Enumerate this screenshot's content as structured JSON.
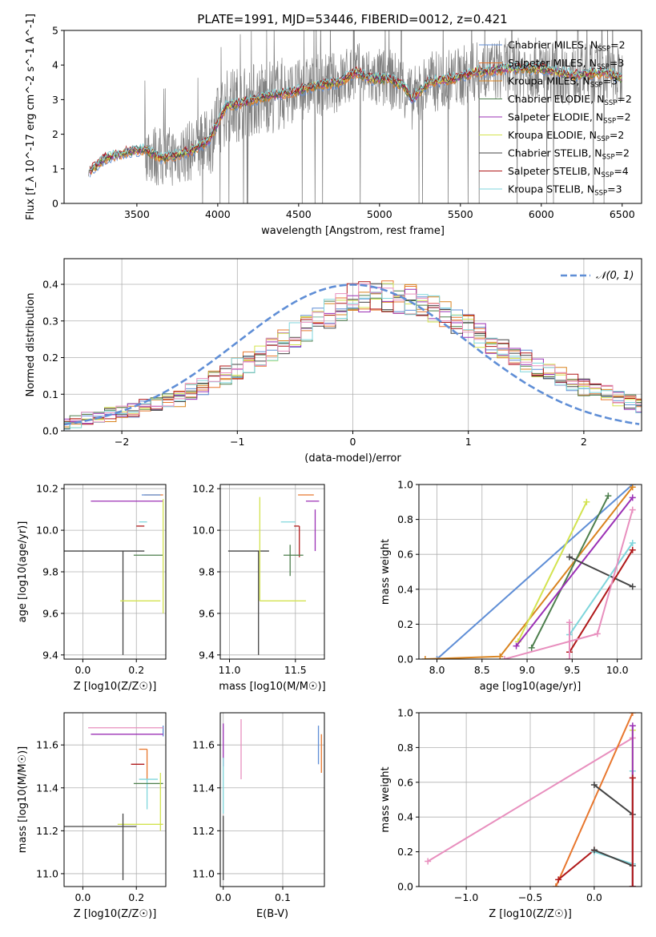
{
  "figure": {
    "title": "PLATE=1991, MJD=53446, FIBERID=0012, z=0.421"
  },
  "chart_data": [
    {
      "id": "spectrum",
      "type": "line",
      "title": "PLATE=1991, MJD=53446, FIBERID=0012, z=0.421",
      "xlabel": "wavelength [Angstrom, rest frame]",
      "ylabel": "Flux [f_λ 10^-17 erg cm^-2 s^-1 A^-1]",
      "xlim": [
        3050,
        6620
      ],
      "ylim": [
        0,
        5
      ],
      "xticks": [
        3500,
        4000,
        4500,
        5000,
        5500,
        6000,
        6500
      ],
      "yticks": [
        0,
        1,
        2,
        3,
        4,
        5
      ],
      "grid": false,
      "legend_position": "upper-right",
      "data_color": "#808080",
      "data_envelope": {
        "x_start": 3200,
        "x_end": 6500,
        "anchor_x": [
          3200,
          3300,
          3450,
          3550,
          3650,
          3750,
          3850,
          3950,
          4050,
          4150,
          4300,
          4450,
          4600,
          4750,
          4850,
          4950,
          5050,
          5150,
          5200,
          5300,
          5450,
          5600,
          5800,
          6000,
          6200,
          6400,
          6500
        ],
        "anchor_y": [
          0.9,
          1.3,
          1.5,
          1.55,
          1.3,
          1.4,
          1.55,
          1.85,
          2.8,
          2.9,
          3.1,
          3.2,
          3.4,
          3.5,
          3.8,
          3.6,
          3.6,
          3.4,
          3.0,
          3.5,
          3.6,
          3.8,
          3.9,
          3.9,
          3.7,
          3.8,
          3.6
        ]
      },
      "series": [
        {
          "name": "Chabrier MILES, N_SSP=2",
          "color": "#5f8ed6"
        },
        {
          "name": "Salpeter MILES, N_SSP=3",
          "color": "#e8772e"
        },
        {
          "name": "Kroupa MILES, N_SSP=3",
          "color": "#d9831f"
        },
        {
          "name": "Chabrier ELODIE, N_SSP=2",
          "color": "#4d7f4d"
        },
        {
          "name": "Salpeter ELODIE, N_SSP=2",
          "color": "#9b30b5"
        },
        {
          "name": "Kroupa ELODIE, N_SSP=2",
          "color": "#d3e34f"
        },
        {
          "name": "Chabrier STELIB, N_SSP=2",
          "color": "#444444"
        },
        {
          "name": "Salpeter STELIB, N_SSP=4",
          "color": "#b0191a"
        },
        {
          "name": "Kroupa STELIB, N_SSP=3",
          "color": "#7fd6dc"
        }
      ]
    },
    {
      "id": "residuals",
      "type": "area",
      "xlabel": "(data-model)/error",
      "ylabel": "Normed distribution",
      "xlim": [
        -2.5,
        2.5
      ],
      "ylim": [
        0,
        0.47
      ],
      "xticks": [
        -2,
        -1,
        0,
        1,
        2
      ],
      "yticks": [
        0.0,
        0.1,
        0.2,
        0.3,
        0.4
      ],
      "grid": true,
      "legend": [
        {
          "name": "𝒩(0, 1)",
          "color": "#5f8ed6",
          "style": "dashed"
        }
      ],
      "legend_position": "upper-right",
      "bin_width": 0.1,
      "series_colors": [
        "#5f8ed6",
        "#e8772e",
        "#d9831f",
        "#4d7f4d",
        "#9b30b5",
        "#d3e34f",
        "#444444",
        "#b0191a",
        "#7fd6dc",
        "#e88fbe"
      ],
      "histogram_envelope": {
        "x": [
          -2.5,
          -2.0,
          -1.5,
          -1.0,
          -0.5,
          -0.2,
          0.0,
          0.2,
          0.5,
          0.8,
          1.0,
          1.5,
          2.0,
          2.5
        ],
        "y": [
          0.02,
          0.05,
          0.09,
          0.17,
          0.26,
          0.32,
          0.36,
          0.37,
          0.36,
          0.32,
          0.28,
          0.19,
          0.12,
          0.07
        ]
      }
    },
    {
      "id": "age-vs-Z",
      "type": "scatter",
      "xlabel": "Z [log10(Z/Z☉)]",
      "ylabel": "age  [log10(age/yr)]",
      "xlim": [
        -0.07,
        0.31
      ],
      "ylim": [
        9.38,
        10.22
      ],
      "xticks": [
        0.0,
        0.2
      ],
      "yticks": [
        9.4,
        9.6,
        9.8,
        10.0,
        10.2
      ],
      "grid": true,
      "points": [
        {
          "x": 0.3,
          "y": 10.17,
          "xerr": [
            0.07,
            0.0
          ],
          "yerr": [
            0.0,
            0.0
          ],
          "color": "#e8772e"
        },
        {
          "x": 0.27,
          "y": 10.17,
          "xerr": [
            0.05,
            0.02
          ],
          "yerr": [
            0.0,
            0.0
          ],
          "color": "#5f8ed6"
        },
        {
          "x": 0.27,
          "y": 10.14,
          "xerr": [
            0.24,
            0.03
          ],
          "yerr": [
            0.0,
            0.0
          ],
          "color": "#9b30b5"
        },
        {
          "x": 0.24,
          "y": 10.04,
          "xerr": [
            0.03,
            0.0
          ],
          "yerr": [
            0.0,
            0.0
          ],
          "color": "#7fd6dc"
        },
        {
          "x": 0.23,
          "y": 10.02,
          "xerr": [
            0.03,
            0.0
          ],
          "yerr": [
            0.0,
            0.0
          ],
          "color": "#b0191a"
        },
        {
          "x": 0.24,
          "y": 9.88,
          "xerr": [
            0.05,
            0.06
          ],
          "yerr": [
            0.0,
            0.0
          ],
          "color": "#4d7f4d"
        },
        {
          "x": 0.15,
          "y": 9.9,
          "xerr": [
            0.22,
            0.08
          ],
          "yerr": [
            0.5,
            0.0
          ],
          "color": "#444444"
        },
        {
          "x": 0.26,
          "y": 9.66,
          "xerr": [
            0.12,
            0.03
          ],
          "yerr": [
            0.0,
            0.0
          ],
          "color": "#d3e34f"
        },
        {
          "x": 0.3,
          "y": 9.95,
          "xerr": [
            0.0,
            0.0
          ],
          "yerr": [
            0.35,
            0.2
          ],
          "color": "#d3e34f"
        }
      ]
    },
    {
      "id": "age-vs-mass",
      "type": "scatter",
      "xlabel": "mass [log10(M/M☉)]",
      "ylabel": "",
      "xlim": [
        10.93,
        11.72
      ],
      "ylim": [
        9.38,
        10.22
      ],
      "xticks": [
        11.0,
        11.5
      ],
      "yticks": [
        9.4,
        9.6,
        9.8,
        10.0,
        10.2
      ],
      "grid": true,
      "points": [
        {
          "x": 11.59,
          "y": 10.17,
          "xerr": [
            0.07,
            0.05
          ],
          "yerr": [
            0.0,
            0.0
          ],
          "color": "#e8772e"
        },
        {
          "x": 11.65,
          "y": 10.14,
          "xerr": [
            0.07,
            0.03
          ],
          "yerr": [
            0.0,
            0.0
          ],
          "color": "#9b30b5"
        },
        {
          "x": 11.65,
          "y": 10.1,
          "xerr": [
            0.0,
            0.0
          ],
          "yerr": [
            0.2,
            0.0
          ],
          "color": "#9b30b5"
        },
        {
          "x": 11.47,
          "y": 10.04,
          "xerr": [
            0.08,
            0.03
          ],
          "yerr": [
            0.0,
            0.0
          ],
          "color": "#7fd6dc"
        },
        {
          "x": 11.53,
          "y": 10.02,
          "xerr": [
            0.04,
            0.0
          ],
          "yerr": [
            0.15,
            0.0
          ],
          "color": "#b0191a"
        },
        {
          "x": 11.46,
          "y": 9.88,
          "xerr": [
            0.05,
            0.1
          ],
          "yerr": [
            0.1,
            0.05
          ],
          "color": "#4d7f4d"
        },
        {
          "x": 11.22,
          "y": 9.9,
          "xerr": [
            0.23,
            0.08
          ],
          "yerr": [
            0.5,
            0.0
          ],
          "color": "#444444"
        },
        {
          "x": 11.23,
          "y": 9.66,
          "xerr": [
            0.0,
            0.35
          ],
          "yerr": [
            0.0,
            0.5
          ],
          "color": "#d3e34f"
        }
      ]
    },
    {
      "id": "weight-vs-age",
      "type": "line",
      "xlabel": "age  [log10(age/yr)]",
      "ylabel": "mass weight",
      "xlim": [
        7.8,
        10.27
      ],
      "ylim": [
        0,
        1.0
      ],
      "xticks": [
        8.0,
        8.5,
        9.0,
        9.5,
        10.0
      ],
      "yticks": [
        0.0,
        0.2,
        0.4,
        0.6,
        0.8,
        1.0
      ],
      "grid": true,
      "series": [
        {
          "color": "#5f8ed6",
          "x": [
            8.0,
            10.17
          ],
          "y": [
            0.0,
            1.0
          ]
        },
        {
          "color": "#d9831f",
          "x": [
            7.87,
            8.7,
            10.17
          ],
          "y": [
            0.0,
            0.015,
            0.985
          ]
        },
        {
          "color": "#d3e34f",
          "x": [
            8.9,
            9.66
          ],
          "y": [
            0.1,
            0.9
          ]
        },
        {
          "color": "#4d7f4d",
          "x": [
            9.05,
            9.9
          ],
          "y": [
            0.065,
            0.935
          ]
        },
        {
          "color": "#9b30b5",
          "x": [
            8.88,
            10.17
          ],
          "y": [
            0.075,
            0.925
          ]
        },
        {
          "color": "#444444",
          "x": [
            9.47,
            10.17
          ],
          "y": [
            0.585,
            0.415
          ]
        },
        {
          "color": "#7fd6dc",
          "x": [
            9.47,
            10.17
          ],
          "y": [
            0.14,
            0.665
          ]
        },
        {
          "color": "#b0191a",
          "x": [
            9.47,
            10.17
          ],
          "y": [
            0.04,
            0.625
          ]
        },
        {
          "color": "#e88fbe",
          "x": [
            8.75,
            9.78,
            10.17
          ],
          "y": [
            0.0,
            0.145,
            0.855
          ]
        },
        {
          "color": "#e88fbe",
          "x": [
            9.47,
            9.47
          ],
          "y": [
            0.21,
            0.0
          ]
        }
      ]
    },
    {
      "id": "mass-vs-Z",
      "type": "scatter",
      "xlabel": "Z [log10(Z/Z☉)]",
      "ylabel": "mass [log10(M/M☉)]",
      "xlim": [
        -0.07,
        0.31
      ],
      "ylim": [
        10.94,
        11.75
      ],
      "xticks": [
        0.0,
        0.2
      ],
      "yticks": [
        11.0,
        11.2,
        11.4,
        11.6
      ],
      "grid": true,
      "points": [
        {
          "x": 0.3,
          "y": 11.69,
          "xerr": [
            0.0,
            0.0
          ],
          "yerr": [
            0.05,
            0.0
          ],
          "color": "#5f8ed6"
        },
        {
          "x": 0.25,
          "y": 11.68,
          "xerr": [
            0.23,
            0.05
          ],
          "yerr": [
            0.0,
            0.0
          ],
          "color": "#e88fbe"
        },
        {
          "x": 0.27,
          "y": 11.65,
          "xerr": [
            0.24,
            0.03
          ],
          "yerr": [
            0.0,
            0.0
          ],
          "color": "#9b30b5"
        },
        {
          "x": 0.24,
          "y": 11.58,
          "xerr": [
            0.03,
            0.0
          ],
          "yerr": [
            0.14,
            0.0
          ],
          "color": "#e8772e"
        },
        {
          "x": 0.23,
          "y": 11.51,
          "xerr": [
            0.05,
            0.0
          ],
          "yerr": [
            0.0,
            0.0
          ],
          "color": "#b0191a"
        },
        {
          "x": 0.24,
          "y": 11.44,
          "xerr": [
            0.03,
            0.04
          ],
          "yerr": [
            0.14,
            0.0
          ],
          "color": "#7fd6dc"
        },
        {
          "x": 0.24,
          "y": 11.42,
          "xerr": [
            0.05,
            0.06
          ],
          "yerr": [
            0.0,
            0.0
          ],
          "color": "#4d7f4d"
        },
        {
          "x": 0.25,
          "y": 11.23,
          "xerr": [
            0.12,
            0.05
          ],
          "yerr": [
            0.0,
            0.0
          ],
          "color": "#d3e34f"
        },
        {
          "x": 0.15,
          "y": 11.22,
          "xerr": [
            0.22,
            0.05
          ],
          "yerr": [
            0.25,
            0.06
          ],
          "color": "#444444"
        },
        {
          "x": 0.29,
          "y": 11.35,
          "xerr": [
            0.0,
            0.0
          ],
          "yerr": [
            0.15,
            0.12
          ],
          "color": "#d3e34f"
        }
      ]
    },
    {
      "id": "mass-vs-EBV",
      "type": "scatter",
      "xlabel": "E(B-V)",
      "ylabel": "",
      "xlim": [
        -0.005,
        0.17
      ],
      "ylim": [
        10.94,
        11.75
      ],
      "xticks": [
        0.0,
        0.1
      ],
      "yticks": [
        11.0,
        11.2,
        11.4,
        11.6
      ],
      "grid": true,
      "points": [
        {
          "x": 0.0,
          "y": 11.6,
          "xerr": [
            0,
            0
          ],
          "yerr": [
            0.1,
            0.1
          ],
          "color": "#9b30b5"
        },
        {
          "x": 0.0,
          "y": 11.4,
          "xerr": [
            0,
            0
          ],
          "yerr": [
            0.12,
            0.14
          ],
          "color": "#7fd6dc"
        },
        {
          "x": 0.0,
          "y": 11.12,
          "xerr": [
            0,
            0
          ],
          "yerr": [
            0.15,
            0.15
          ],
          "color": "#444444"
        },
        {
          "x": 0.03,
          "y": 11.58,
          "xerr": [
            0,
            0
          ],
          "yerr": [
            0.14,
            0.14
          ],
          "color": "#e88fbe"
        },
        {
          "x": 0.16,
          "y": 11.6,
          "xerr": [
            0,
            0
          ],
          "yerr": [
            0.09,
            0.09
          ],
          "color": "#5f8ed6"
        },
        {
          "x": 0.165,
          "y": 11.56,
          "xerr": [
            0,
            0
          ],
          "yerr": [
            0.09,
            0.09
          ],
          "color": "#e8772e"
        }
      ]
    },
    {
      "id": "weight-vs-Z",
      "type": "line",
      "xlabel": "Z [log10(Z/Z☉)]",
      "ylabel": "mass weight",
      "xlim": [
        -1.37,
        0.37
      ],
      "ylim": [
        0,
        1.0
      ],
      "xticks": [
        -1.0,
        -0.5,
        0.0
      ],
      "yticks": [
        0.0,
        0.2,
        0.4,
        0.6,
        0.8,
        1.0
      ],
      "grid": true,
      "series": [
        {
          "color": "#e88fbe",
          "x": [
            -1.3,
            0.3
          ],
          "y": [
            0.145,
            0.855
          ]
        },
        {
          "color": "#e8772e",
          "x": [
            -0.3,
            0.3
          ],
          "y": [
            0.0,
            1.0
          ]
        },
        {
          "color": "#444444",
          "x": [
            0.0,
            0.3
          ],
          "y": [
            0.585,
            0.415
          ]
        },
        {
          "color": "#b0191a",
          "x": [
            -0.28,
            0.0
          ],
          "y": [
            0.04,
            0.21
          ]
        },
        {
          "color": "#7fd6dc",
          "x": [
            0.0,
            0.3
          ],
          "y": [
            0.2,
            0.13
          ]
        },
        {
          "color": "#444444",
          "x": [
            0.0,
            0.3
          ],
          "y": [
            0.21,
            0.12
          ]
        },
        {
          "color": "#7fd6dc",
          "x": [
            0.3,
            0.3
          ],
          "y": [
            0.0,
            0.665
          ]
        },
        {
          "color": "#d3e34f",
          "x": [
            0.3,
            0.3
          ],
          "y": [
            0.0,
            0.9
          ]
        },
        {
          "color": "#9b30b5",
          "x": [
            0.3,
            0.3
          ],
          "y": [
            0.0,
            0.925
          ]
        },
        {
          "color": "#b0191a",
          "x": [
            0.3,
            0.3
          ],
          "y": [
            0.0,
            0.625
          ]
        }
      ]
    }
  ]
}
